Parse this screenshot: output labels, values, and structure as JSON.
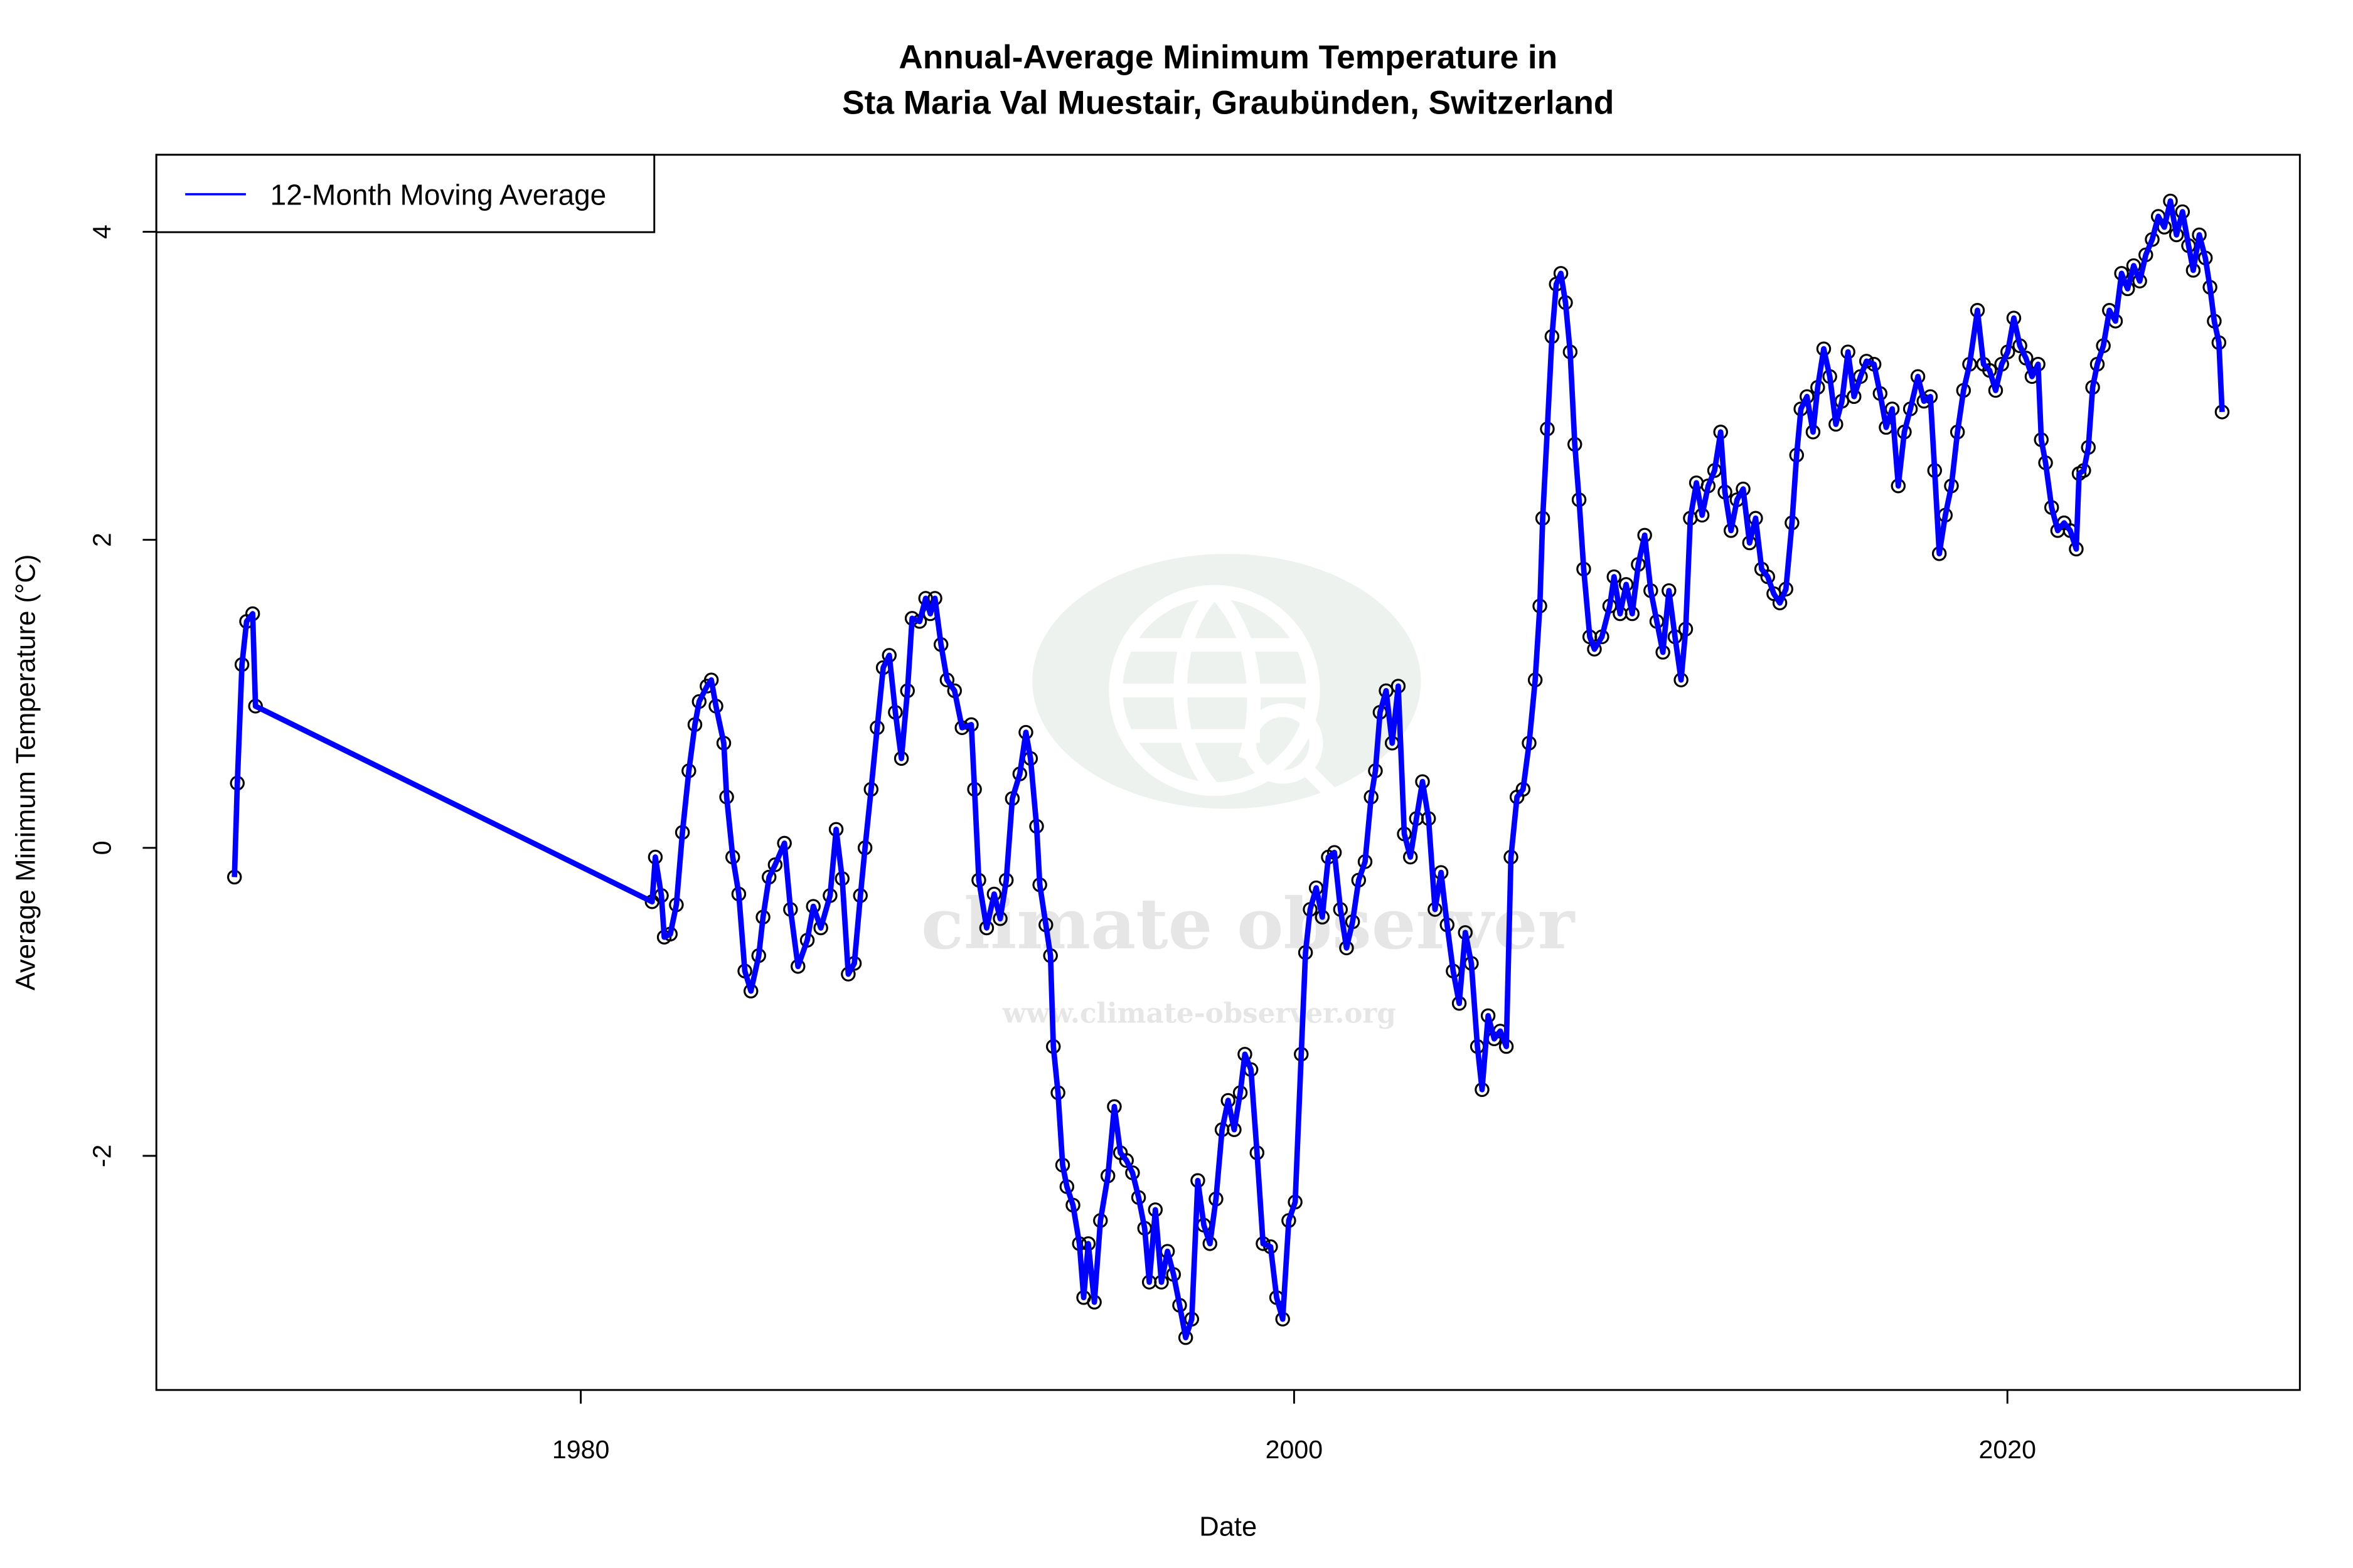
{
  "chart_data": {
    "type": "line",
    "title": [
      "Annual-Average Minimum Temperature in",
      "Sta Maria Val Muestair, Graubünden, Switzerland"
    ],
    "xlabel": "Date",
    "ylabel": "Average Minimum Temperature (°C)",
    "xlim": [
      1968.1,
      2028.2
    ],
    "ylim": [
      -3.52,
      4.5
    ],
    "x_ticks": [
      1980,
      2000,
      2020
    ],
    "y_ticks": [
      -2,
      0,
      2,
      4
    ],
    "grid": false,
    "legend_position": "top-left",
    "colors": {
      "line": "#0000ff",
      "points": "#000000"
    },
    "watermark": {
      "name": "climate observer",
      "url": "www.climate-observer.org",
      "icon": "globe-search-icon"
    },
    "series": [
      {
        "name": "12-Month Moving Average",
        "x": [
          1970.29,
          1970.37,
          1970.5,
          1970.63,
          1970.8,
          1970.88,
          1982.0,
          1982.09,
          1982.26,
          1982.34,
          1982.51,
          1982.68,
          1982.85,
          1983.03,
          1983.2,
          1983.32,
          1983.54,
          1983.66,
          1983.79,
          1984.01,
          1984.09,
          1984.26,
          1984.43,
          1984.6,
          1984.77,
          1984.99,
          1985.11,
          1985.28,
          1985.45,
          1985.71,
          1985.88,
          1986.09,
          1986.35,
          1986.52,
          1986.73,
          1986.99,
          1987.16,
          1987.33,
          1987.5,
          1987.67,
          1987.84,
          1987.97,
          1988.14,
          1988.31,
          1988.48,
          1988.65,
          1988.82,
          1988.99,
          1989.16,
          1989.29,
          1989.5,
          1989.67,
          1989.8,
          1989.93,
          1990.1,
          1990.27,
          1990.48,
          1990.69,
          1990.95,
          1991.04,
          1991.16,
          1991.38,
          1991.59,
          1991.76,
          1991.93,
          1992.1,
          1992.31,
          1992.48,
          1992.61,
          1992.78,
          1992.87,
          1993.04,
          1993.17,
          1993.25,
          1993.38,
          1993.51,
          1993.63,
          1993.8,
          1993.98,
          1994.1,
          1994.23,
          1994.4,
          1994.57,
          1994.78,
          1994.96,
          1995.13,
          1995.3,
          1995.47,
          1995.64,
          1995.81,
          1995.94,
          1996.11,
          1996.28,
          1996.45,
          1996.62,
          1996.79,
          1996.96,
          1997.13,
          1997.3,
          1997.47,
          1997.64,
          1997.81,
          1997.98,
          1998.15,
          1998.32,
          1998.49,
          1998.62,
          1998.79,
          1998.96,
          1999.13,
          1999.34,
          1999.51,
          1999.68,
          1999.85,
          2000.03,
          2000.2,
          2000.32,
          2000.45,
          2000.62,
          2000.79,
          2000.96,
          2001.13,
          2001.3,
          2001.47,
          2001.64,
          2001.81,
          2001.99,
          2002.16,
          2002.28,
          2002.41,
          2002.58,
          2002.75,
          2002.92,
          2003.09,
          2003.26,
          2003.43,
          2003.6,
          2003.77,
          2003.95,
          2004.12,
          2004.29,
          2004.46,
          2004.63,
          2004.8,
          2004.97,
          2005.14,
          2005.27,
          2005.44,
          2005.61,
          2005.78,
          2005.95,
          2006.08,
          2006.25,
          2006.42,
          2006.59,
          2006.76,
          2006.89,
          2006.97,
          2007.1,
          2007.23,
          2007.35,
          2007.48,
          2007.61,
          2007.74,
          2007.87,
          2007.99,
          2008.12,
          2008.29,
          2008.42,
          2008.63,
          2008.85,
          2008.97,
          2009.14,
          2009.31,
          2009.48,
          2009.65,
          2009.83,
          2010.0,
          2010.17,
          2010.34,
          2010.51,
          2010.68,
          2010.85,
          2010.98,
          2011.11,
          2011.28,
          2011.44,
          2011.61,
          2011.79,
          2011.96,
          2012.08,
          2012.25,
          2012.42,
          2012.59,
          2012.77,
          2012.94,
          2013.11,
          2013.28,
          2013.45,
          2013.62,
          2013.79,
          2013.96,
          2014.09,
          2014.21,
          2014.38,
          2014.55,
          2014.68,
          2014.85,
          2015.02,
          2015.19,
          2015.36,
          2015.53,
          2015.7,
          2015.88,
          2016.05,
          2016.26,
          2016.43,
          2016.6,
          2016.77,
          2016.94,
          2017.11,
          2017.28,
          2017.49,
          2017.66,
          2017.84,
          2017.96,
          2018.09,
          2018.26,
          2018.43,
          2018.6,
          2018.77,
          2018.94,
          2019.16,
          2019.33,
          2019.5,
          2019.67,
          2019.84,
          2020.01,
          2020.18,
          2020.35,
          2020.52,
          2020.69,
          2020.86,
          2020.95,
          2021.07,
          2021.24,
          2021.41,
          2021.59,
          2021.76,
          2021.93,
          2022.01,
          2022.14,
          2022.27,
          2022.39,
          2022.52,
          2022.69,
          2022.86,
          2023.03,
          2023.2,
          2023.37,
          2023.54,
          2023.71,
          2023.88,
          2024.06,
          2024.23,
          2024.4,
          2024.57,
          2024.74,
          2024.91,
          2025.08,
          2025.21,
          2025.38,
          2025.55,
          2025.68,
          2025.8,
          2025.93,
          2026.02
        ],
        "y": [
          -0.19,
          0.42,
          1.19,
          1.47,
          1.52,
          0.92,
          -0.35,
          -0.06,
          -0.31,
          -0.58,
          -0.56,
          -0.37,
          0.1,
          0.5,
          0.8,
          0.95,
          1.05,
          1.09,
          0.92,
          0.68,
          0.33,
          -0.06,
          -0.3,
          -0.8,
          -0.93,
          -0.7,
          -0.45,
          -0.19,
          -0.11,
          0.03,
          -0.4,
          -0.77,
          -0.6,
          -0.38,
          -0.52,
          -0.31,
          0.12,
          -0.2,
          -0.82,
          -0.75,
          -0.31,
          0.0,
          0.38,
          0.78,
          1.17,
          1.25,
          0.88,
          0.58,
          1.02,
          1.49,
          1.47,
          1.62,
          1.52,
          1.62,
          1.32,
          1.09,
          1.02,
          0.78,
          0.8,
          0.38,
          -0.21,
          -0.52,
          -0.3,
          -0.46,
          -0.21,
          0.32,
          0.48,
          0.75,
          0.58,
          0.14,
          -0.24,
          -0.5,
          -0.7,
          -1.29,
          -1.59,
          -2.06,
          -2.2,
          -2.32,
          -2.57,
          -2.92,
          -2.57,
          -2.95,
          -2.42,
          -2.13,
          -1.68,
          -1.98,
          -2.03,
          -2.11,
          -2.27,
          -2.47,
          -2.82,
          -2.35,
          -2.82,
          -2.62,
          -2.77,
          -2.97,
          -3.18,
          -3.06,
          -2.16,
          -2.45,
          -2.57,
          -2.28,
          -1.83,
          -1.64,
          -1.83,
          -1.59,
          -1.34,
          -1.44,
          -1.98,
          -2.57,
          -2.59,
          -2.92,
          -3.06,
          -2.42,
          -2.3,
          -1.34,
          -0.68,
          -0.4,
          -0.26,
          -0.45,
          -0.06,
          -0.03,
          -0.4,
          -0.65,
          -0.48,
          -0.21,
          -0.09,
          0.33,
          0.5,
          0.88,
          1.02,
          0.68,
          1.05,
          0.09,
          -0.06,
          0.19,
          0.43,
          0.19,
          -0.4,
          -0.16,
          -0.5,
          -0.8,
          -1.01,
          -0.55,
          -0.75,
          -1.29,
          -1.57,
          -1.09,
          -1.24,
          -1.19,
          -1.29,
          -0.06,
          0.33,
          0.38,
          0.68,
          1.09,
          1.57,
          2.14,
          2.72,
          3.32,
          3.66,
          3.73,
          3.54,
          3.22,
          2.62,
          2.26,
          1.81,
          1.37,
          1.29,
          1.37,
          1.57,
          1.76,
          1.52,
          1.71,
          1.52,
          1.84,
          2.03,
          1.67,
          1.47,
          1.27,
          1.67,
          1.37,
          1.09,
          1.42,
          2.14,
          2.37,
          2.16,
          2.35,
          2.45,
          2.7,
          2.31,
          2.06,
          2.26,
          2.33,
          1.98,
          2.14,
          1.81,
          1.76,
          1.65,
          1.59,
          1.68,
          2.11,
          2.55,
          2.85,
          2.93,
          2.7,
          2.99,
          3.24,
          3.06,
          2.75,
          2.9,
          3.22,
          2.93,
          3.06,
          3.16,
          3.14,
          2.95,
          2.73,
          2.85,
          2.35,
          2.7,
          2.85,
          3.06,
          2.9,
          2.93,
          2.45,
          1.91,
          2.16,
          2.35,
          2.7,
          2.97,
          3.14,
          3.49,
          3.14,
          3.1,
          2.97,
          3.14,
          3.22,
          3.44,
          3.26,
          3.18,
          3.06,
          3.14,
          2.65,
          2.5,
          2.21,
          2.06,
          2.11,
          2.06,
          1.94,
          2.43,
          2.45,
          2.6,
          2.99,
          3.14,
          3.26,
          3.49,
          3.42,
          3.73,
          3.63,
          3.78,
          3.68,
          3.85,
          3.95,
          4.1,
          4.03,
          4.2,
          3.98,
          4.13,
          3.91,
          3.75,
          3.98,
          3.83,
          3.64,
          3.42,
          3.28,
          2.83
        ]
      }
    ]
  }
}
